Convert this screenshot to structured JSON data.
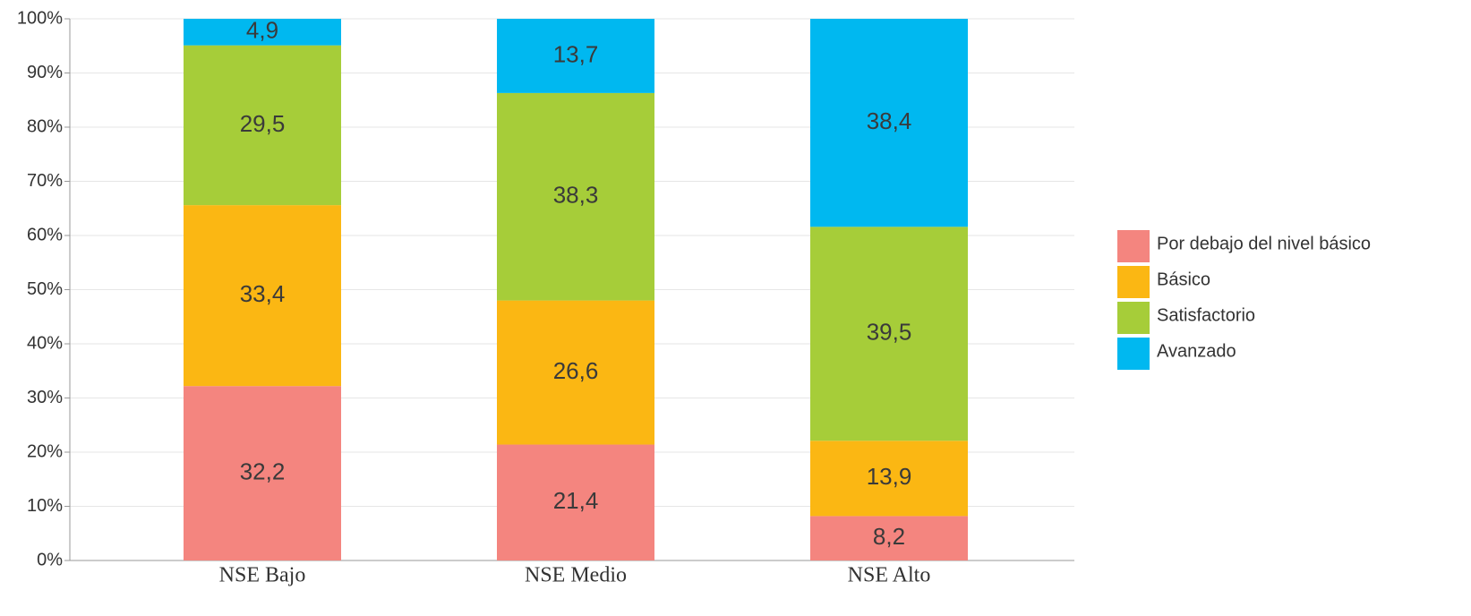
{
  "chart_data": {
    "type": "stacked_bar",
    "categories": [
      "NSE Bajo",
      "NSE Medio",
      "NSE Alto"
    ],
    "series": [
      {
        "name": "Por debajo del nivel básico",
        "color": "#f4857f",
        "values": [
          32.2,
          21.4,
          8.2
        ],
        "value_labels": [
          "32,2",
          "21,4",
          "8,2"
        ]
      },
      {
        "name": "Básico",
        "color": "#fbb713",
        "values": [
          33.4,
          26.6,
          13.9
        ],
        "value_labels": [
          "33,4",
          "26,6",
          "13,9"
        ]
      },
      {
        "name": "Satisfactorio",
        "color": "#a6cd39",
        "values": [
          29.5,
          38.3,
          39.5
        ],
        "value_labels": [
          "29,5",
          "38,3",
          "39,5"
        ]
      },
      {
        "name": "Avanzado",
        "color": "#00b8f0",
        "values": [
          4.9,
          13.7,
          38.4
        ],
        "value_labels": [
          "4,9",
          "13,7",
          "38,4"
        ]
      }
    ],
    "ylim": [
      0,
      100
    ],
    "yticks": [
      {
        "value": 0,
        "label": "0%"
      },
      {
        "value": 10,
        "label": "10%"
      },
      {
        "value": 20,
        "label": "20%"
      },
      {
        "value": 30,
        "label": "30%"
      },
      {
        "value": 40,
        "label": "40%"
      },
      {
        "value": 50,
        "label": "50%"
      },
      {
        "value": 60,
        "label": "60%"
      },
      {
        "value": 70,
        "label": "70%"
      },
      {
        "value": 80,
        "label": "80%"
      },
      {
        "value": 90,
        "label": "90%"
      },
      {
        "value": 100,
        "label": "100%"
      }
    ],
    "grid": true,
    "legend": "right"
  }
}
